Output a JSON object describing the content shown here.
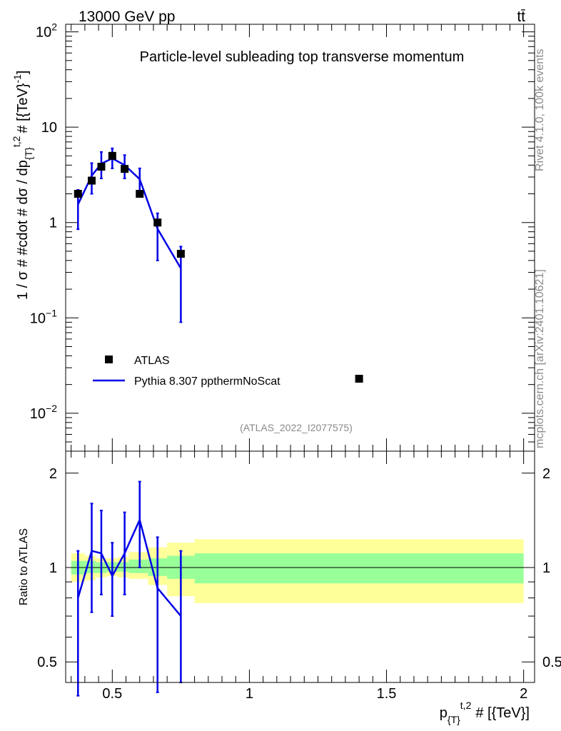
{
  "header": {
    "energy_label": "13000 GeV pp",
    "process_label": "tt̄",
    "title": "Particle-level subleading top transverse momentum",
    "analysis_id": "(ATLAS_2022_I2077575)",
    "side_rivet": "Rivet 4.1.0,  100k events",
    "side_mcplots": "mcplots.cern.ch [arXiv:2401.10621]"
  },
  "chart_data": {
    "type": "scatter",
    "title": "Particle-level subleading top transverse momentum",
    "xlabel_main": "p",
    "xlabel_sub": "{T}",
    "xlabel_sup": "t,2",
    "xlabel_rest": "# [{TeV}]",
    "ylabel_main": "1 / σ # #cdot # dσ / dp",
    "ylabel_sub": "{T}",
    "ylabel_sup": "t,2",
    "ylabel_rest": "# [{TeV}",
    "ylabel_exp": "-1",
    "ylabel_close": "]",
    "ratio_ylabel": "Ratio to ATLAS",
    "xlim": [
      0.33,
      2.04
    ],
    "ylim_main": [
      0.004,
      120
    ],
    "ylim_ratio": [
      0.43,
      2.35
    ],
    "x_ticks": [
      {
        "value": 0.5,
        "label": "0.5"
      },
      {
        "value": 1,
        "label": "1"
      },
      {
        "value": 1.5,
        "label": "1.5"
      },
      {
        "value": 2,
        "label": "2"
      }
    ],
    "y_main_ticks": [
      {
        "value": 100,
        "base": "10",
        "exp": "2"
      },
      {
        "value": 10,
        "base": "10",
        "exp": ""
      },
      {
        "value": 1,
        "base": "1",
        "exp": ""
      },
      {
        "value": 0.1,
        "base": "10",
        "exp": "−1"
      },
      {
        "value": 0.01,
        "base": "10",
        "exp": "−2"
      }
    ],
    "y_ratio_ticks": [
      {
        "value": 2,
        "label": "2"
      },
      {
        "value": 1,
        "label": "1"
      },
      {
        "value": 0.5,
        "label": "0.5"
      }
    ],
    "legend": {
      "position": "lower-left",
      "data_label": "ATLAS",
      "mc_label": "Pythia 8.307 ppthermNoScat"
    },
    "data_points": [
      {
        "x": 0.375,
        "y": 2.0
      },
      {
        "x": 0.425,
        "y": 2.75
      },
      {
        "x": 0.46,
        "y": 3.85
      },
      {
        "x": 0.5,
        "y": 5.0
      },
      {
        "x": 0.545,
        "y": 3.65
      },
      {
        "x": 0.6,
        "y": 2.0
      },
      {
        "x": 0.665,
        "y": 1.0
      },
      {
        "x": 0.75,
        "y": 0.47
      },
      {
        "x": 1.4,
        "y": 0.023
      }
    ],
    "mc_series": [
      {
        "x": 0.375,
        "y": 1.55,
        "ylo": 0.85,
        "yhi": 2.2
      },
      {
        "x": 0.425,
        "y": 3.1,
        "ylo": 2.0,
        "yhi": 4.2
      },
      {
        "x": 0.46,
        "y": 4.15,
        "ylo": 2.9,
        "yhi": 5.5
      },
      {
        "x": 0.5,
        "y": 4.7,
        "ylo": 3.7,
        "yhi": 6.0
      },
      {
        "x": 0.545,
        "y": 4.0,
        "ylo": 2.9,
        "yhi": 5.1
      },
      {
        "x": 0.6,
        "y": 2.85,
        "ylo": 2.0,
        "yhi": 3.7
      },
      {
        "x": 0.665,
        "y": 0.86,
        "ylo": 0.4,
        "yhi": 1.25
      },
      {
        "x": 0.75,
        "y": 0.33,
        "ylo": 0.09,
        "yhi": 0.56
      }
    ],
    "ratio_series": [
      {
        "x": 0.375,
        "y": 0.8,
        "ylo": 0.39,
        "yhi": 1.13
      },
      {
        "x": 0.425,
        "y": 1.13,
        "ylo": 0.72,
        "yhi": 1.6
      },
      {
        "x": 0.46,
        "y": 1.11,
        "ylo": 0.82,
        "yhi": 1.52
      },
      {
        "x": 0.5,
        "y": 0.94,
        "ylo": 0.7,
        "yhi": 1.2
      },
      {
        "x": 0.545,
        "y": 1.11,
        "ylo": 0.82,
        "yhi": 1.5
      },
      {
        "x": 0.6,
        "y": 1.42,
        "ylo": 1.0,
        "yhi": 1.88
      },
      {
        "x": 0.665,
        "y": 0.86,
        "ylo": 0.4,
        "yhi": 1.25
      },
      {
        "x": 0.75,
        "y": 0.7,
        "ylo": 0.43,
        "yhi": 1.13
      }
    ],
    "uncertainty_bands": [
      {
        "x0": 0.35,
        "x1": 0.4,
        "inner": [
          0.95,
          1.05
        ],
        "outer": [
          0.9,
          1.11
        ]
      },
      {
        "x0": 0.4,
        "x1": 0.44,
        "inner": [
          0.96,
          1.05
        ],
        "outer": [
          0.91,
          1.09
        ]
      },
      {
        "x0": 0.44,
        "x1": 0.48,
        "inner": [
          0.96,
          1.04
        ],
        "outer": [
          0.93,
          1.07
        ]
      },
      {
        "x0": 0.48,
        "x1": 0.52,
        "inner": [
          0.97,
          1.04
        ],
        "outer": [
          0.94,
          1.07
        ]
      },
      {
        "x0": 0.52,
        "x1": 0.56,
        "inner": [
          0.97,
          1.04
        ],
        "outer": [
          0.93,
          1.08
        ]
      },
      {
        "x0": 0.56,
        "x1": 0.63,
        "inner": [
          0.96,
          1.06
        ],
        "outer": [
          0.92,
          1.12
        ]
      },
      {
        "x0": 0.63,
        "x1": 0.7,
        "inner": [
          0.94,
          1.07
        ],
        "outer": [
          0.88,
          1.16
        ]
      },
      {
        "x0": 0.7,
        "x1": 0.8,
        "inner": [
          0.92,
          1.09
        ],
        "outer": [
          0.81,
          1.2
        ]
      },
      {
        "x0": 0.8,
        "x1": 2.0,
        "inner": [
          0.89,
          1.11
        ],
        "outer": [
          0.77,
          1.23
        ]
      }
    ],
    "ratio_reference": 1,
    "colors": {
      "data": "#000000",
      "mc": "#0000e8",
      "band_inner": "#99ff99",
      "band_outer": "#ffff99",
      "muted_text": "#8a8a8a"
    }
  }
}
